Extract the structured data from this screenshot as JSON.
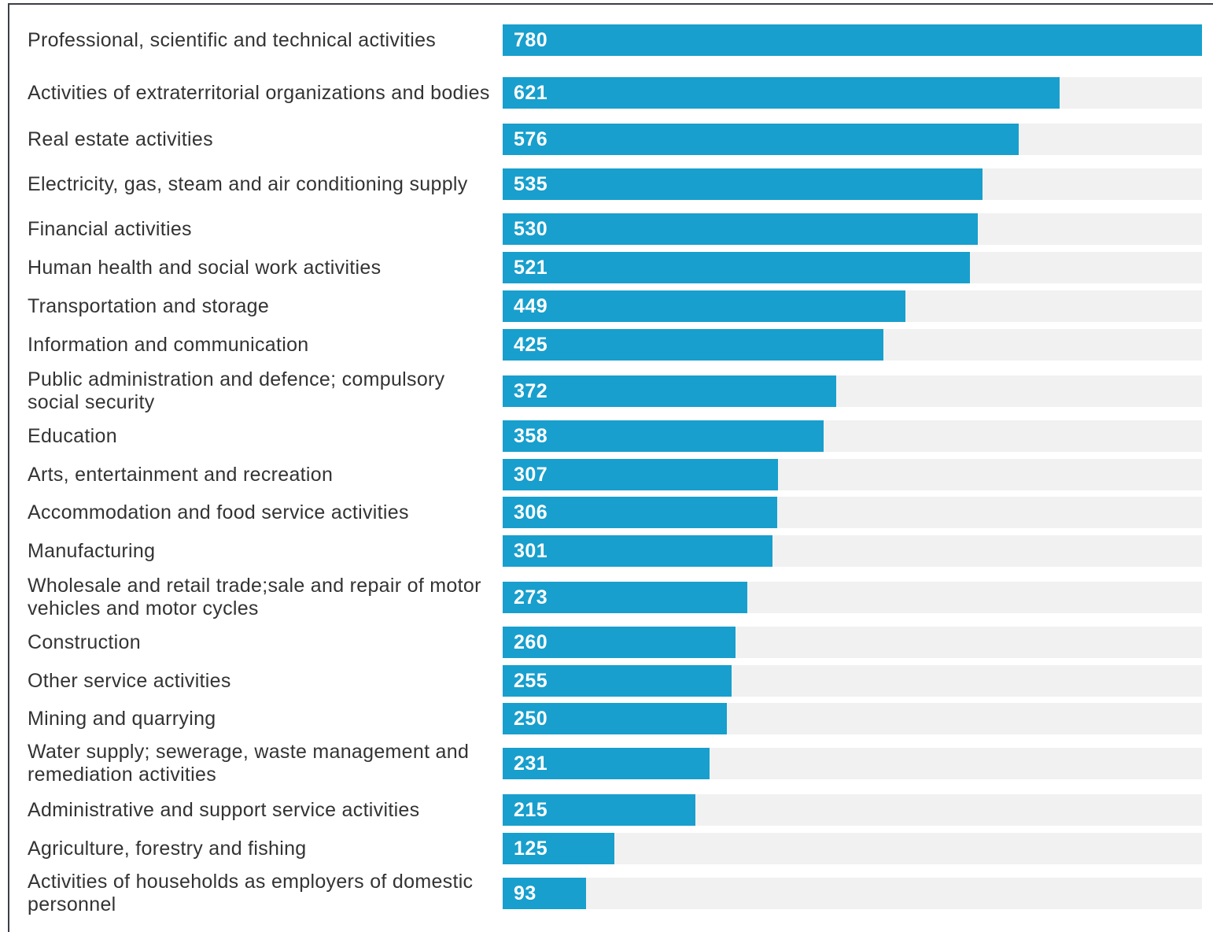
{
  "chart_data": {
    "type": "bar",
    "orientation": "horizontal",
    "xlim": [
      0,
      780
    ],
    "grid": false,
    "colors": {
      "bar": "#189fcd",
      "track": "#f1f1f1",
      "label": "#333333",
      "value": "#ffffff"
    },
    "categories": [
      "Professional, scientific and technical activities",
      "Activities of extraterritorial organizations and bodies",
      "Real estate activities",
      "Electricity, gas, steam and air conditioning supply",
      "Financial activities",
      "Human health and social work activities",
      "Transportation and storage",
      "Information and communication",
      "Public administration and defence; compulsory social security",
      "Education",
      "Arts, entertainment and recreation",
      "Accommodation and food service activities",
      "Manufacturing",
      "Wholesale and retail trade;sale and repair of motor vehicles and motor cycles",
      "Construction",
      "Other service activities",
      "Mining and quarrying",
      "Water supply; sewerage, waste management and remediation activities",
      "Administrative and support service activities",
      "Agriculture, forestry and fishing",
      "Activities of households as employers of domestic personnel"
    ],
    "values": [
      780,
      621,
      576,
      535,
      530,
      521,
      449,
      425,
      372,
      358,
      307,
      306,
      301,
      273,
      260,
      255,
      250,
      231,
      215,
      125,
      93
    ]
  }
}
